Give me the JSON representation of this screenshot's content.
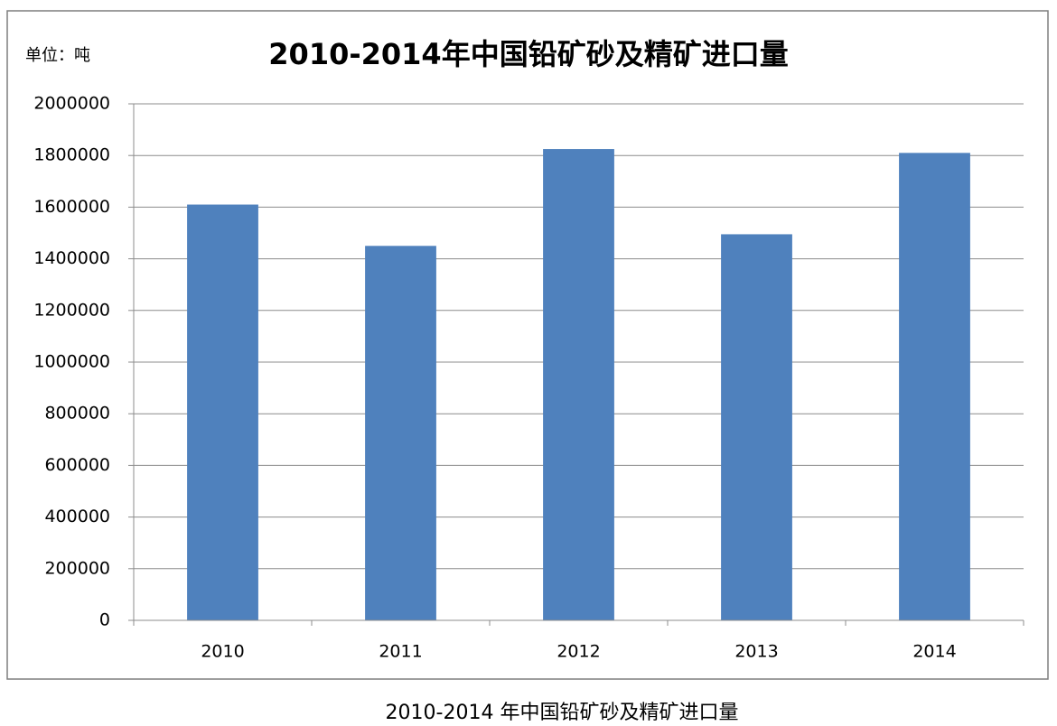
{
  "chart_data": {
    "type": "bar",
    "title": "2010-2014年中国铅矿砂及精矿进口量",
    "y_unit_label": "单位：吨",
    "categories": [
      "2010",
      "2011",
      "2012",
      "2013",
      "2014"
    ],
    "values": [
      1610000,
      1450000,
      1825000,
      1495000,
      1810000
    ],
    "color": "#4f81bd",
    "ylim": [
      0,
      2000000
    ],
    "yticks": [
      0,
      200000,
      400000,
      600000,
      800000,
      1000000,
      1200000,
      1400000,
      1600000,
      1800000,
      2000000
    ],
    "grid": true
  },
  "caption": "2010-2014 年中国铅矿砂及精矿进口量"
}
